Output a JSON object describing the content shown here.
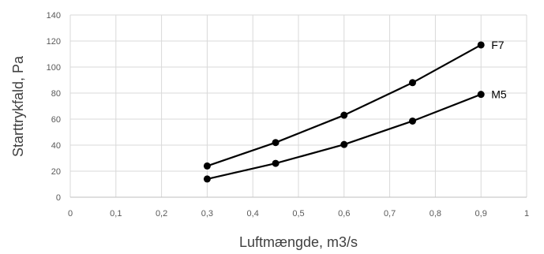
{
  "chart_data": {
    "type": "line",
    "title": "",
    "xlabel": "Luftmængde, m3/s",
    "ylabel": "Starttrykfald, Pa",
    "xlim": [
      0,
      1
    ],
    "ylim": [
      0,
      140
    ],
    "x_ticks": [
      "0",
      "0,1",
      "0,2",
      "0,3",
      "0,4",
      "0,5",
      "0,6",
      "0,7",
      "0,8",
      "0,9",
      "1"
    ],
    "y_ticks": [
      "0",
      "20",
      "40",
      "60",
      "80",
      "100",
      "120",
      "140"
    ],
    "grid": true,
    "legend": "none (series labelled at line ends)",
    "series": [
      {
        "name": "F7",
        "color": "#000000",
        "x": [
          0.3,
          0.45,
          0.6,
          0.75,
          0.9
        ],
        "y": [
          24,
          42,
          63,
          88,
          117
        ]
      },
      {
        "name": "M5",
        "color": "#000000",
        "x": [
          0.3,
          0.45,
          0.6,
          0.75,
          0.9
        ],
        "y": [
          14,
          26,
          40.5,
          58.5,
          79
        ]
      }
    ]
  }
}
